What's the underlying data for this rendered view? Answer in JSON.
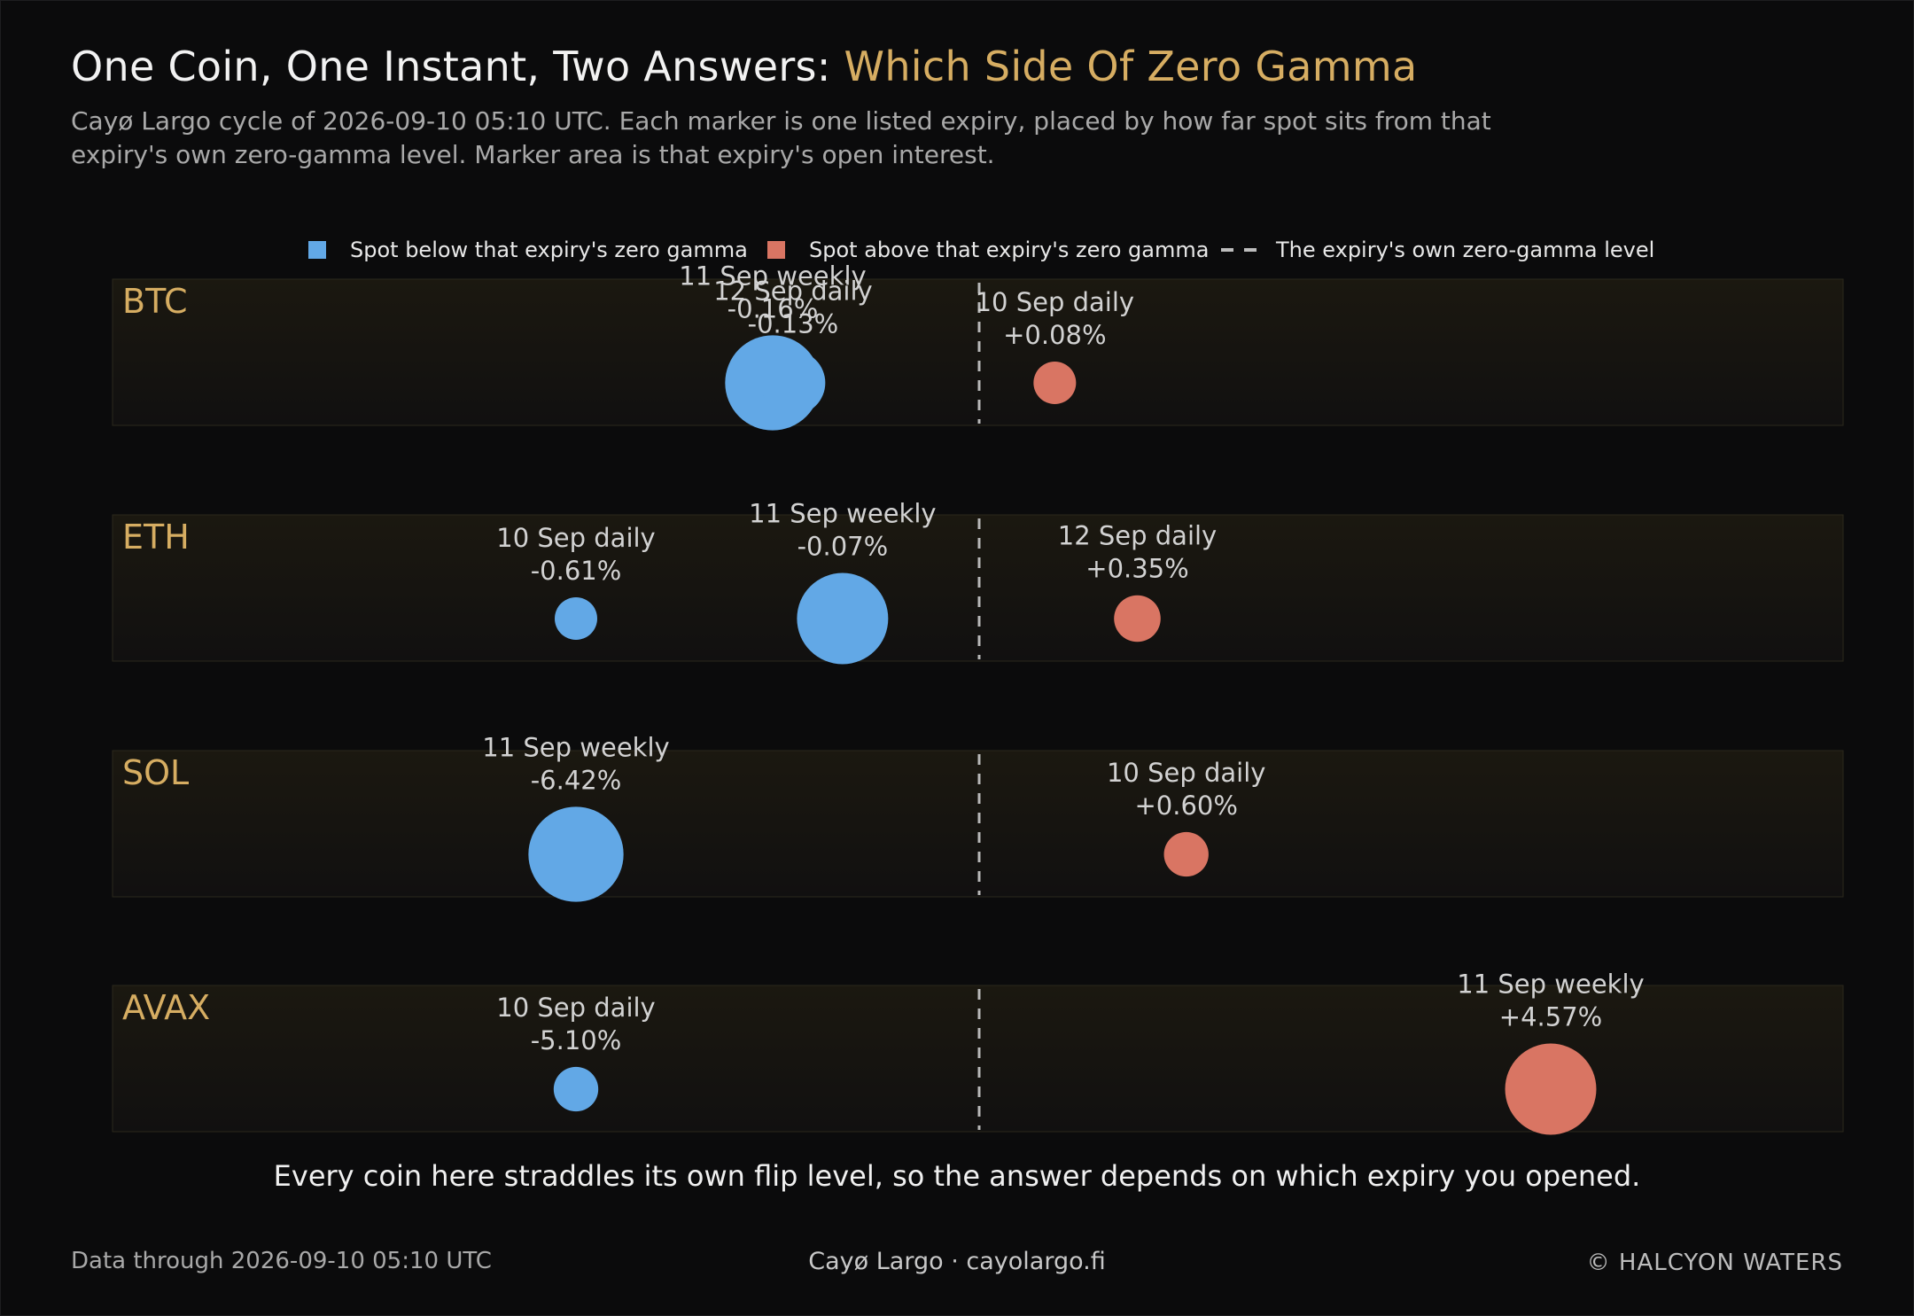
{
  "header": {
    "title_main": "One Coin, One Instant, Two Answers: ",
    "title_accent": "Which Side Of Zero Gamma",
    "subtitle": "Cayø Largo cycle of 2026-09-10 05:10 UTC. Each marker is one listed expiry, placed by how far spot sits from that expiry's own zero-gamma level. Marker area is that expiry's open interest."
  },
  "legend": {
    "below": "Spot below that expiry's zero gamma",
    "above": "Spot above that expiry's zero gamma",
    "line": "The expiry's own zero-gamma level"
  },
  "colors": {
    "below": "#62a8e6",
    "above": "#d97563",
    "accent": "#d6ad62",
    "band": "#16140f",
    "zero_line": "#b8b8b8"
  },
  "chart_data": {
    "type": "scatter",
    "rows": [
      {
        "coin": "BTC",
        "points": [
          {
            "expiry": "11 Sep weekly",
            "label": "-0.16%",
            "value": -0.16,
            "size": 5.0
          },
          {
            "expiry": "12 Sep daily",
            "label": "-0.13%",
            "value": -0.13,
            "size": 2.3
          },
          {
            "expiry": "10 Sep daily",
            "label": "+0.08%",
            "value": 0.08,
            "size": 1.0
          }
        ]
      },
      {
        "coin": "ETH",
        "points": [
          {
            "expiry": "10 Sep daily",
            "label": "-0.61%",
            "value": -0.61,
            "size": 1.0
          },
          {
            "expiry": "11 Sep weekly",
            "label": "-0.07%",
            "value": -0.07,
            "size": 4.6
          },
          {
            "expiry": "12 Sep daily",
            "label": "+0.35%",
            "value": 0.35,
            "size": 1.2
          }
        ]
      },
      {
        "coin": "SOL",
        "points": [
          {
            "expiry": "11 Sep weekly",
            "label": "-6.42%",
            "value": -6.42,
            "size": 5.0
          },
          {
            "expiry": "10 Sep daily",
            "label": "+0.60%",
            "value": 0.6,
            "size": 1.1
          }
        ]
      },
      {
        "coin": "AVAX",
        "points": [
          {
            "expiry": "10 Sep daily",
            "label": "-5.10%",
            "value": -5.1,
            "size": 1.1
          },
          {
            "expiry": "11 Sep weekly",
            "label": "+4.57%",
            "value": 4.57,
            "size": 4.6
          }
        ]
      }
    ]
  },
  "footnote": "Every coin here straddles its own flip level, so the answer depends on which expiry you opened.",
  "footer": {
    "left": "Data through 2026-09-10 05:10 UTC",
    "center": "Cayø Largo  ·  cayolargo.fi",
    "right": "© HALCYON WATERS"
  }
}
